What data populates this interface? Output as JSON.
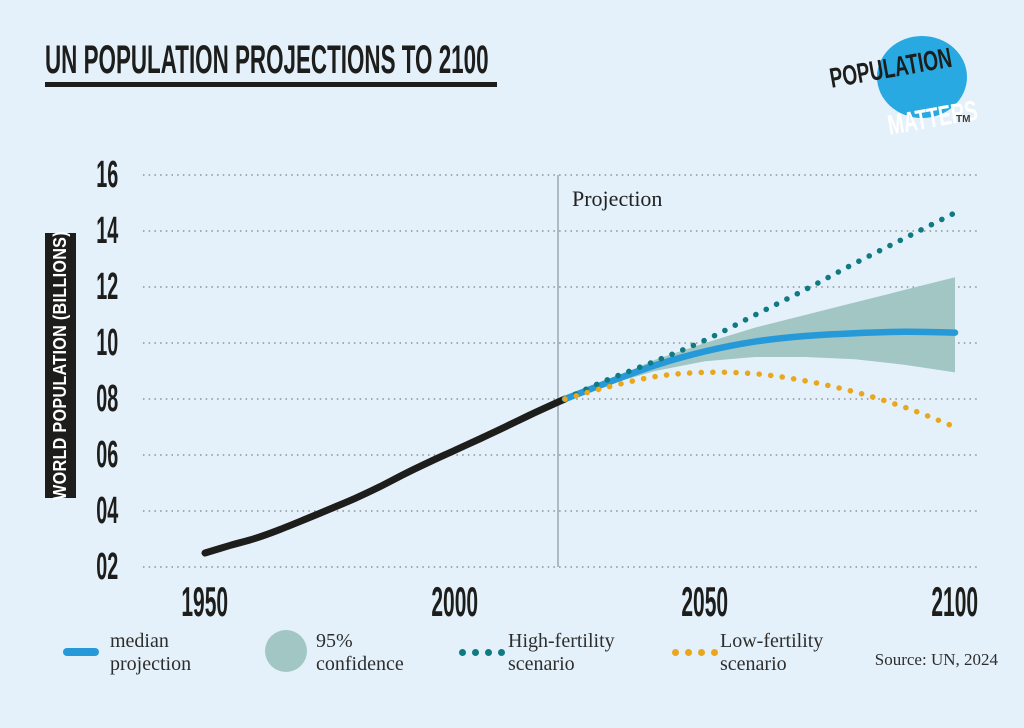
{
  "page": {
    "background_color": "#e4f1fa"
  },
  "header": {
    "title": "UN POPULATION PROJECTIONS TO 2100",
    "logo": {
      "line1": "POPULATION",
      "line2": "MATTERS",
      "tm": "TM",
      "circle_color": "#29a9e2"
    }
  },
  "chart_data": {
    "type": "line",
    "title": "UN POPULATION PROJECTIONS TO 2100",
    "ylabel": "WORLD POPULATION (BILLIONS)",
    "projection_label": "Projection",
    "projection_start_year": 2022,
    "xlim": [
      1950,
      2100
    ],
    "ylim": [
      2,
      16
    ],
    "grid": "dotted horizontal gridlines at each y tick",
    "yticks": [
      {
        "value": 16,
        "label": "16"
      },
      {
        "value": 14,
        "label": "14"
      },
      {
        "value": 12,
        "label": "12"
      },
      {
        "value": 10,
        "label": "10"
      },
      {
        "value": 8,
        "label": "08"
      },
      {
        "value": 6,
        "label": "06"
      },
      {
        "value": 4,
        "label": "04"
      },
      {
        "value": 2,
        "label": "02"
      }
    ],
    "xticks": [
      {
        "value": 1950,
        "label": "1950"
      },
      {
        "value": 2000,
        "label": "2000"
      },
      {
        "value": 2050,
        "label": "2050"
      },
      {
        "value": 2100,
        "label": "2100"
      }
    ],
    "series": [
      {
        "key": "historical",
        "name": "historical population",
        "color": "#1d1d1b",
        "style": "solid",
        "width": 7,
        "x": [
          1950,
          1955,
          1960,
          1965,
          1970,
          1975,
          1980,
          1985,
          1990,
          1995,
          2000,
          2005,
          2010,
          2015,
          2020,
          2022
        ],
        "y": [
          2.5,
          2.77,
          3.02,
          3.34,
          3.7,
          4.07,
          4.45,
          4.87,
          5.33,
          5.76,
          6.17,
          6.58,
          7.0,
          7.43,
          7.84,
          8.0
        ]
      },
      {
        "key": "median",
        "name": "median projection",
        "color": "#2699d8",
        "style": "solid",
        "width": 6.5,
        "x": [
          2022,
          2030,
          2040,
          2050,
          2060,
          2070,
          2080,
          2090,
          2100
        ],
        "y": [
          8.0,
          8.55,
          9.2,
          9.7,
          10.05,
          10.25,
          10.35,
          10.4,
          10.37
        ]
      },
      {
        "key": "high",
        "name": "High-fertility scenario",
        "color": "#0f7a81",
        "style": "dotted",
        "width": 5.5,
        "x": [
          2022,
          2030,
          2040,
          2050,
          2060,
          2070,
          2080,
          2090,
          2100
        ],
        "y": [
          8.0,
          8.65,
          9.35,
          10.1,
          11.0,
          11.9,
          12.85,
          13.75,
          14.65
        ]
      },
      {
        "key": "low",
        "name": "Low-fertility scenario",
        "color": "#e8a71d",
        "style": "dotted",
        "width": 5.5,
        "x": [
          2022,
          2030,
          2040,
          2050,
          2060,
          2070,
          2080,
          2090,
          2100
        ],
        "y": [
          8.0,
          8.4,
          8.8,
          8.95,
          8.9,
          8.65,
          8.25,
          7.7,
          7.0
        ]
      }
    ],
    "band": {
      "name": "95% confidence interval",
      "color": "#a2c6c3",
      "x": [
        2024,
        2030,
        2040,
        2050,
        2060,
        2070,
        2080,
        2090,
        2100
      ],
      "upper": [
        8.1,
        8.62,
        9.4,
        10.0,
        10.55,
        11.0,
        11.45,
        11.9,
        12.35
      ],
      "lower": [
        8.05,
        8.48,
        9.0,
        9.35,
        9.5,
        9.5,
        9.42,
        9.22,
        8.95
      ]
    }
  },
  "legend": {
    "items": [
      {
        "label": "median projection",
        "swatch_color": "#2699d8"
      },
      {
        "label": "95% confidence",
        "swatch_color": "#a2c6c3"
      },
      {
        "label": "High-fertility scenario",
        "swatch_color": "#0f7a81"
      },
      {
        "label": "Low-fertility scenario",
        "swatch_color": "#e8a71d"
      }
    ],
    "source": "Source: UN, 2024"
  }
}
